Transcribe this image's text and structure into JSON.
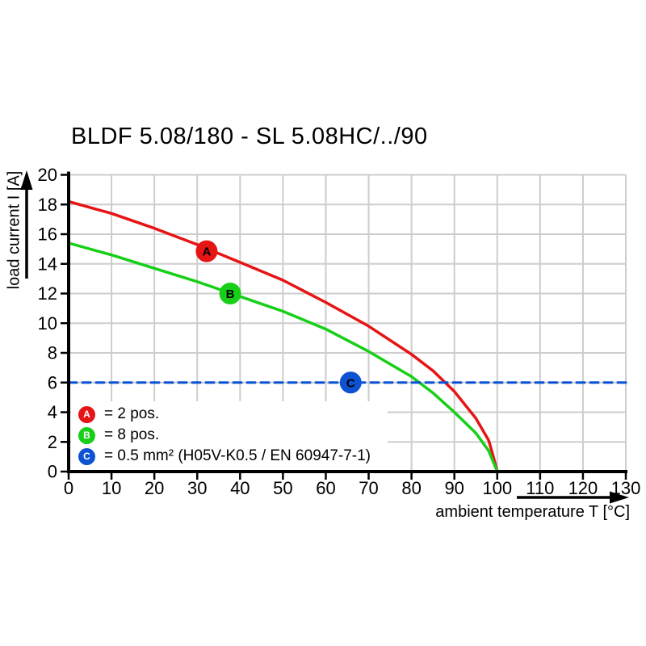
{
  "title": "BLDF 5.08/180 - SL 5.08HC/../90",
  "chart_data": {
    "type": "line",
    "title": "BLDF 5.08/180 - SL 5.08HC/../90",
    "xlabel": "ambient temperature T [°C]",
    "ylabel": "load current I [A]",
    "xlim": [
      0,
      130
    ],
    "ylim": [
      0,
      20
    ],
    "xticks": [
      0,
      10,
      20,
      30,
      40,
      50,
      60,
      70,
      80,
      90,
      100,
      110,
      120,
      130
    ],
    "yticks": [
      0,
      2,
      4,
      6,
      8,
      10,
      12,
      14,
      16,
      18,
      20
    ],
    "grid": true,
    "grid_color": "#cdcdcd",
    "legend_position": "bottom-left inside",
    "series": [
      {
        "id": "A",
        "label": "2 pos.",
        "color": "#e61414",
        "style": "solid",
        "points": [
          [
            0,
            18.2
          ],
          [
            10,
            17.4
          ],
          [
            20,
            16.4
          ],
          [
            30,
            15.3
          ],
          [
            40,
            14.1
          ],
          [
            50,
            12.9
          ],
          [
            60,
            11.4
          ],
          [
            70,
            9.8
          ],
          [
            80,
            7.9
          ],
          [
            85,
            6.8
          ],
          [
            90,
            5.4
          ],
          [
            95,
            3.6
          ],
          [
            98,
            2.1
          ],
          [
            99,
            1.1
          ],
          [
            100,
            0
          ]
        ]
      },
      {
        "id": "B",
        "label": "8 pos.",
        "color": "#17cf17",
        "style": "solid",
        "points": [
          [
            0,
            15.4
          ],
          [
            10,
            14.6
          ],
          [
            20,
            13.7
          ],
          [
            30,
            12.8
          ],
          [
            40,
            11.8
          ],
          [
            50,
            10.8
          ],
          [
            60,
            9.6
          ],
          [
            70,
            8.1
          ],
          [
            80,
            6.4
          ],
          [
            85,
            5.3
          ],
          [
            90,
            4.0
          ],
          [
            95,
            2.6
          ],
          [
            98,
            1.4
          ],
          [
            99,
            0.7
          ],
          [
            100,
            0
          ]
        ]
      },
      {
        "id": "C",
        "label": "0.5 mm² (H05V-K0.5 / EN 60947-7-1)",
        "color": "#0d52d2",
        "style": "dashed",
        "points": [
          [
            0,
            6
          ],
          [
            130,
            6
          ]
        ]
      }
    ],
    "point_markers": [
      {
        "letter": "A",
        "x": 32.2,
        "y": 14.85,
        "color": "#e61414"
      },
      {
        "letter": "B",
        "x": 37.7,
        "y": 12.0,
        "color": "#17cf17"
      },
      {
        "letter": "C",
        "x": 65.8,
        "y": 6.0,
        "color": "#0d52d2"
      }
    ]
  },
  "legend": {
    "items": [
      {
        "letter": "A",
        "label": "= 2 pos.",
        "color": "#e61414"
      },
      {
        "letter": "B",
        "label": "= 8 pos.",
        "color": "#17cf17"
      },
      {
        "letter": "C",
        "label": "= 0.5 mm² (H05V-K0.5 / EN 60947-7-1)",
        "color": "#0d52d2"
      }
    ]
  }
}
